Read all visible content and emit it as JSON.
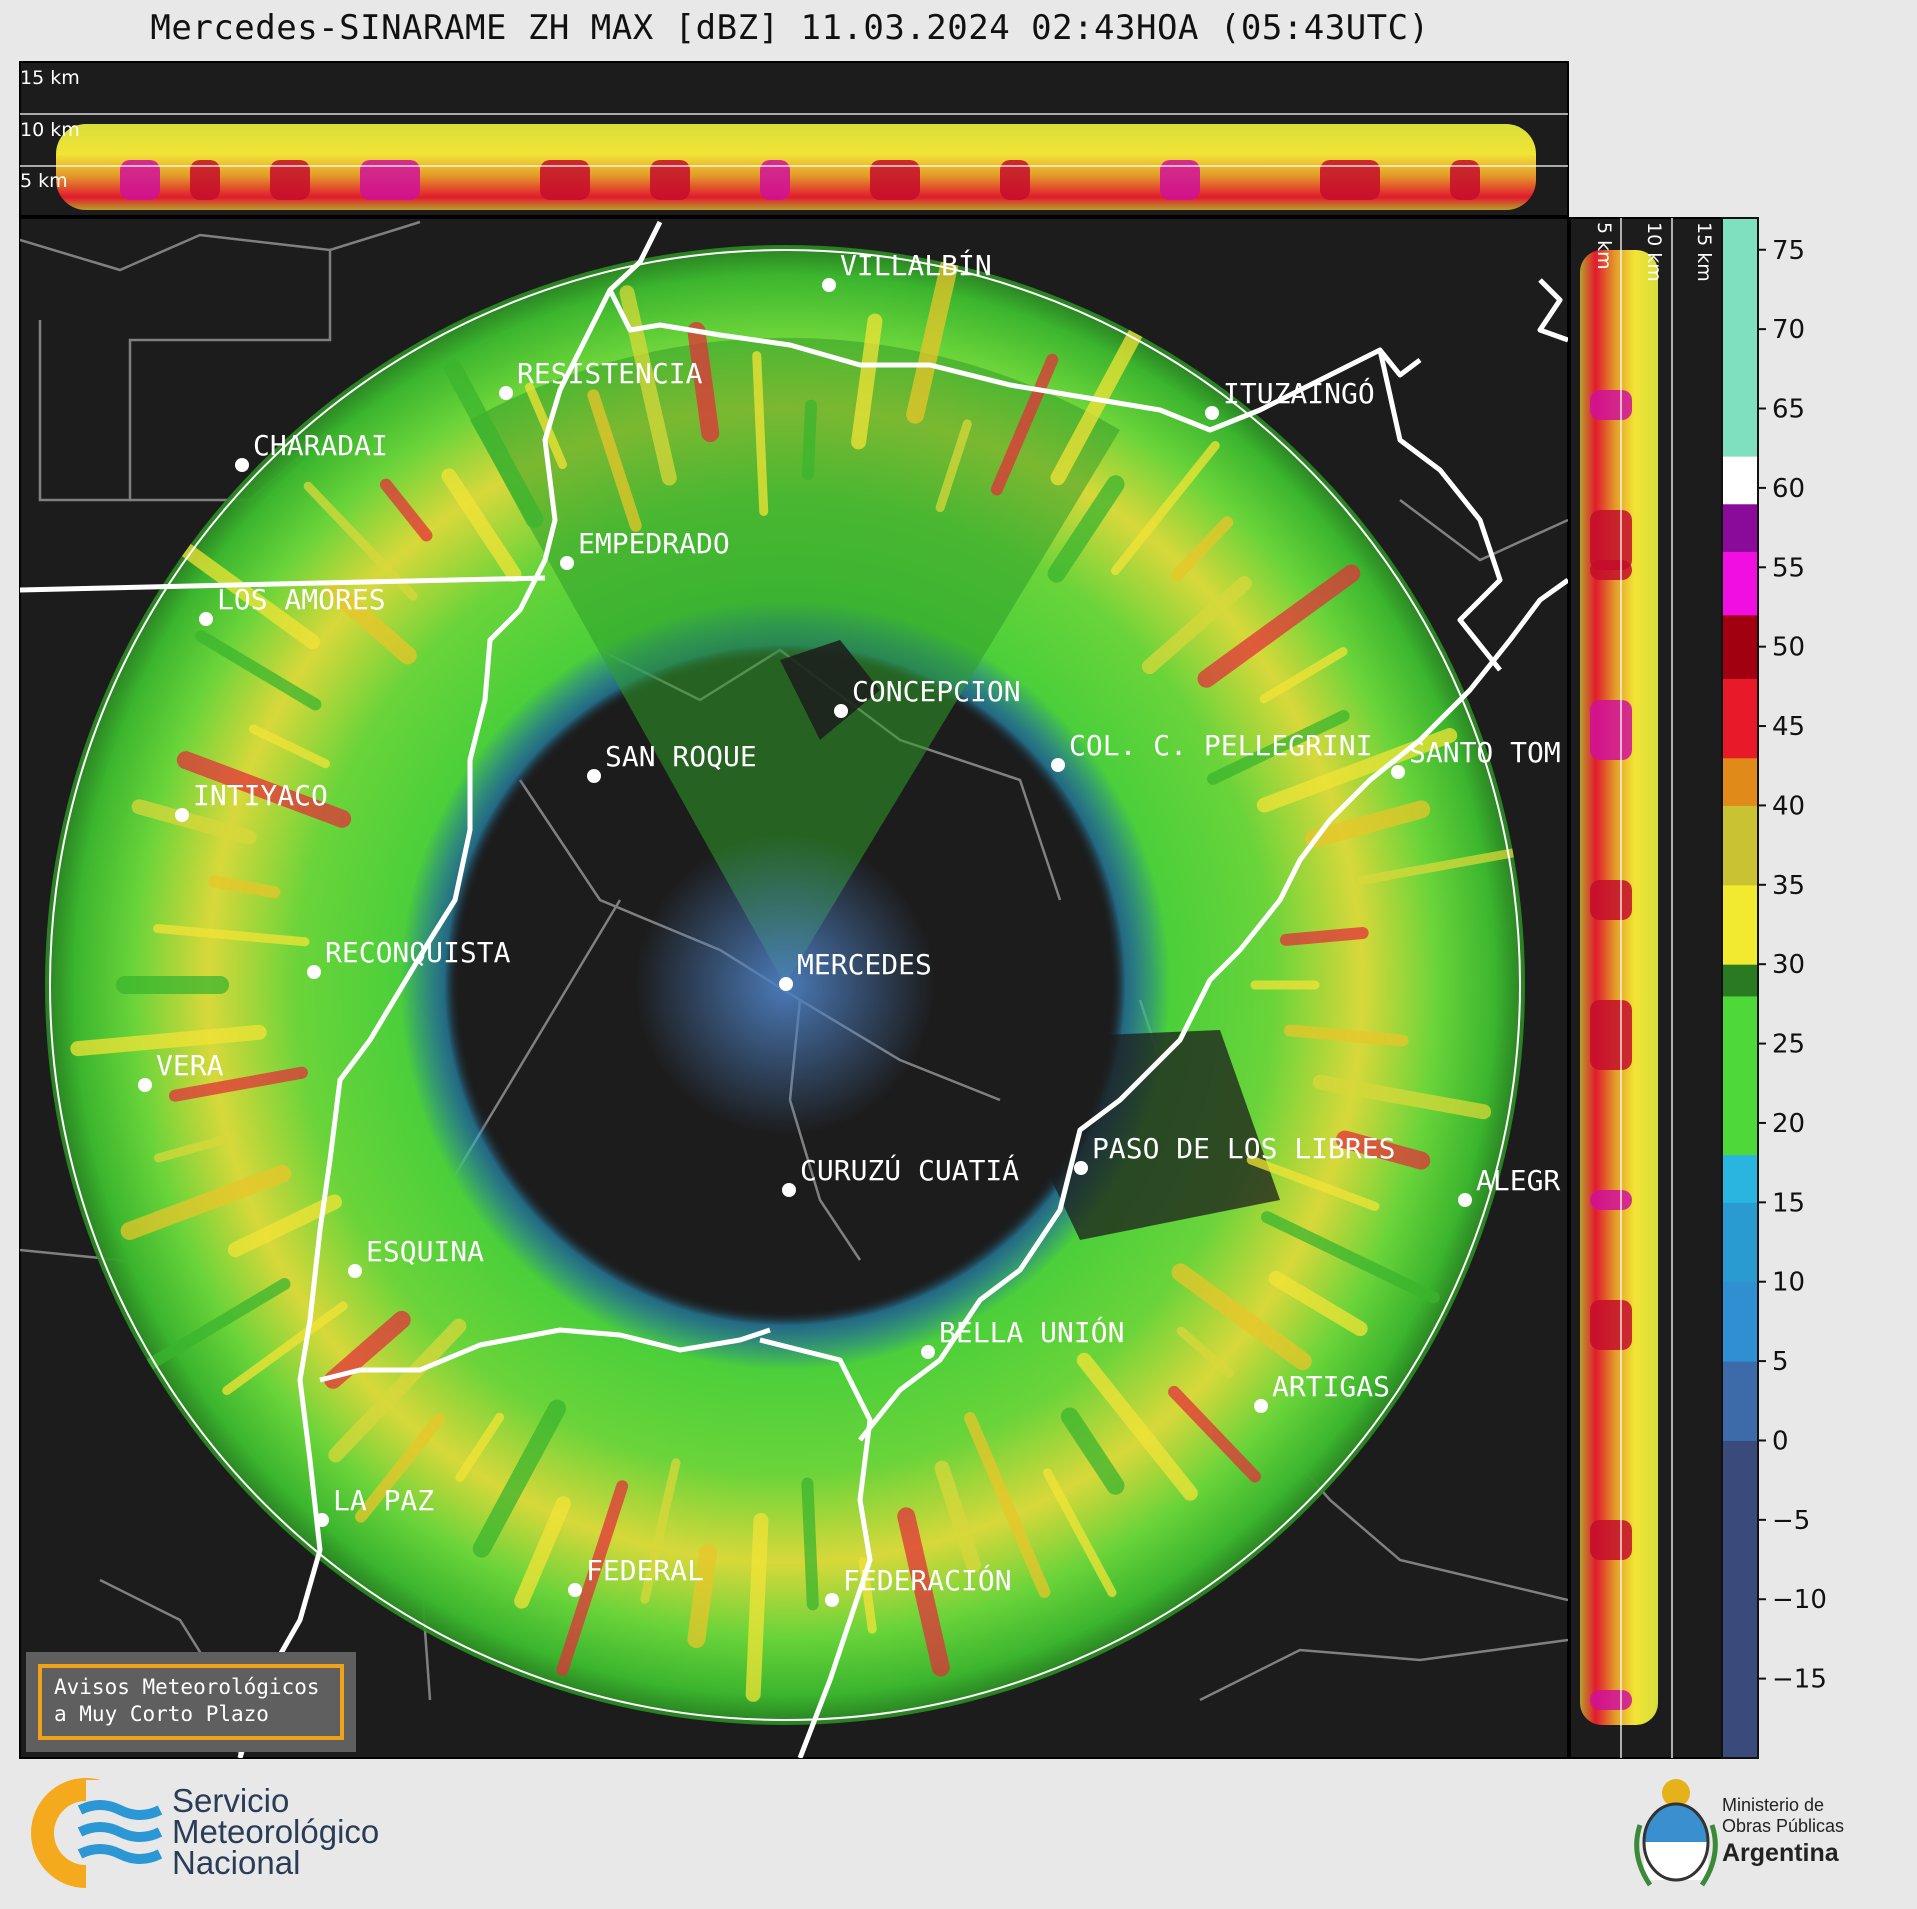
{
  "title": "Mercedes-SINARAME ZH MAX [dBZ] 11.03.2024 02:43HOA (05:43UTC)",
  "top_section": {
    "height_labels": [
      "15 km",
      "10 km",
      "5 km"
    ]
  },
  "side_section": {
    "height_labels": [
      "5 km",
      "10 km",
      "15 km"
    ]
  },
  "map": {
    "cities": [
      {
        "name": "VILLALBÍN"
      },
      {
        "name": "RESISTENCIA"
      },
      {
        "name": "CHARADAI"
      },
      {
        "name": "ITUZAINGÓ"
      },
      {
        "name": "EMPEDRADO"
      },
      {
        "name": "LOS AMORES"
      },
      {
        "name": "CONCEPCION"
      },
      {
        "name": "SAN ROQUE"
      },
      {
        "name": "COL. C. PELLEGRINI"
      },
      {
        "name": "SANTO TOM"
      },
      {
        "name": "INTIYACO"
      },
      {
        "name": "MERCEDES"
      },
      {
        "name": "RECONQUISTA"
      },
      {
        "name": "VERA"
      },
      {
        "name": "CURUZÚ CUATIÁ"
      },
      {
        "name": "PASO DE LOS LIBRES"
      },
      {
        "name": "ALEGR"
      },
      {
        "name": "ESQUINA"
      },
      {
        "name": "BELLA UNIÓN"
      },
      {
        "name": "ARTIGAS"
      },
      {
        "name": "LA PAZ"
      },
      {
        "name": "FEDERAL"
      },
      {
        "name": "FEDERACIÓN"
      }
    ]
  },
  "colorbar": {
    "unit": "dBZ",
    "min": -20,
    "max": 77,
    "ticks": [
      "75",
      "70",
      "65",
      "60",
      "55",
      "50",
      "45",
      "40",
      "35",
      "30",
      "25",
      "20",
      "15",
      "10",
      "5",
      "0",
      "−5",
      "−10",
      "−15"
    ],
    "colors": {
      "below_0": "#3a4a7a",
      "blue": "#2f8fd0",
      "cyan": "#2ab4e0",
      "green": "#4fd83a",
      "dark_green": "#2a7a22",
      "yellow": "#f2ea2e",
      "olive": "#c9c233",
      "orange": "#e08a1a",
      "red": "#e81a2a",
      "dark_red": "#a00010",
      "magenta": "#f00ee0",
      "purple": "#8a0a9a",
      "white": "#ffffff",
      "mint": "#7fe0c0"
    }
  },
  "avisos_box": {
    "line1": "Avisos Meteorológicos",
    "line2": "a Muy Corto Plazo"
  },
  "logos": {
    "smn": {
      "line1": "Servicio",
      "line2": "Meteorológico",
      "line3": "Nacional"
    },
    "ministerio": {
      "line1": "Ministerio de",
      "line2": "Obras Públicas",
      "line3": "Argentina"
    }
  }
}
